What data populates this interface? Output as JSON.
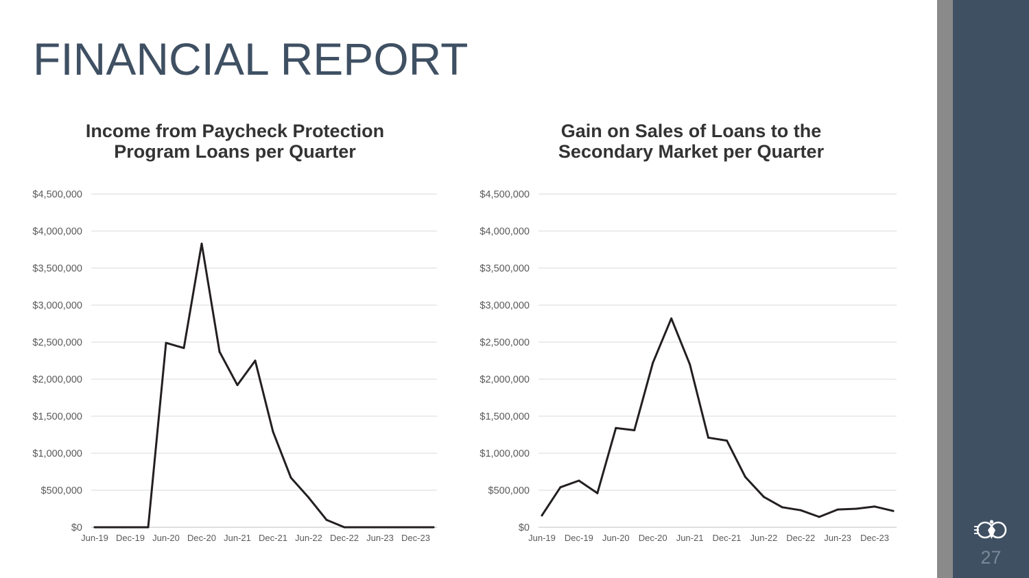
{
  "slide": {
    "title": "FINANCIAL REPORT",
    "page_number": "27",
    "colors": {
      "title": "#3f5063",
      "sidebar_navy": "#3f5063",
      "sidebar_grey": "#8a8a8a",
      "line": "#231f20",
      "grid": "#d9d9d9"
    },
    "logo_icon": "organization-logo-icon"
  },
  "chart_data": [
    {
      "type": "line",
      "title_lines": [
        "Income from Paycheck Protection",
        "Program Loans per Quarter"
      ],
      "xlabel": "",
      "ylabel": "",
      "ylim": [
        0,
        4500000
      ],
      "yticks": [
        0,
        500000,
        1000000,
        1500000,
        2000000,
        2500000,
        3000000,
        3500000,
        4000000,
        4500000
      ],
      "ytick_labels": [
        "$0",
        "$500,000",
        "$1,000,000",
        "$1,500,000",
        "$2,000,000",
        "$2,500,000",
        "$3,000,000",
        "$3,500,000",
        "$4,000,000",
        "$4,500,000"
      ],
      "x": [
        "Jun-19",
        "Sep-19",
        "Dec-19",
        "Mar-20",
        "Jun-20",
        "Sep-20",
        "Dec-20",
        "Mar-21",
        "Jun-21",
        "Sep-21",
        "Dec-21",
        "Mar-22",
        "Jun-22",
        "Sep-22",
        "Dec-22",
        "Mar-23",
        "Jun-23",
        "Sep-23",
        "Dec-23",
        "Mar-24"
      ],
      "xtick_labels": [
        "Jun-19",
        "Dec-19",
        "Jun-20",
        "Dec-20",
        "Jun-21",
        "Dec-21",
        "Jun-22",
        "Dec-22",
        "Jun-23",
        "Dec-23"
      ],
      "grid": true,
      "series": [
        {
          "values": [
            0,
            0,
            0,
            0,
            2490000,
            2420000,
            3830000,
            2370000,
            1920000,
            2250000,
            1290000,
            670000,
            400000,
            100000,
            0,
            0,
            0,
            0,
            0,
            0
          ]
        }
      ]
    },
    {
      "type": "line",
      "title_lines": [
        "Gain on Sales of Loans to the",
        "Secondary Market per Quarter"
      ],
      "xlabel": "",
      "ylabel": "",
      "ylim": [
        0,
        4500000
      ],
      "yticks": [
        0,
        500000,
        1000000,
        1500000,
        2000000,
        2500000,
        3000000,
        3500000,
        4000000,
        4500000
      ],
      "ytick_labels": [
        "$0",
        "$500,000",
        "$1,000,000",
        "$1,500,000",
        "$2,000,000",
        "$2,500,000",
        "$3,000,000",
        "$3,500,000",
        "$4,000,000",
        "$4,500,000"
      ],
      "x": [
        "Jun-19",
        "Sep-19",
        "Dec-19",
        "Mar-20",
        "Jun-20",
        "Sep-20",
        "Dec-20",
        "Mar-21",
        "Jun-21",
        "Sep-21",
        "Dec-21",
        "Mar-22",
        "Jun-22",
        "Sep-22",
        "Dec-22",
        "Mar-23",
        "Jun-23",
        "Sep-23",
        "Dec-23",
        "Mar-24"
      ],
      "xtick_labels": [
        "Jun-19",
        "Dec-19",
        "Jun-20",
        "Dec-20",
        "Jun-21",
        "Dec-21",
        "Jun-22",
        "Dec-22",
        "Jun-23",
        "Dec-23"
      ],
      "grid": true,
      "series": [
        {
          "values": [
            160000,
            540000,
            630000,
            460000,
            1340000,
            1310000,
            2220000,
            2820000,
            2200000,
            1210000,
            1170000,
            680000,
            410000,
            270000,
            230000,
            140000,
            240000,
            250000,
            280000,
            220000
          ]
        }
      ]
    }
  ]
}
